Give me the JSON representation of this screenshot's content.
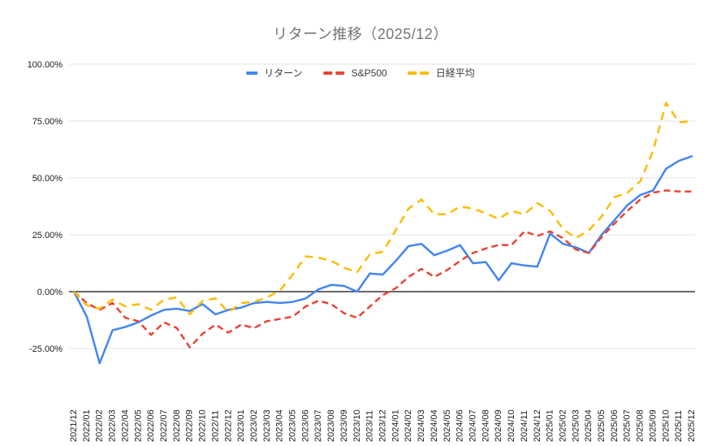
{
  "chart_data": {
    "type": "line",
    "title": "リターン推移（2025/12）",
    "xlabel": "",
    "ylabel": "",
    "grid": true,
    "legend_position": "top-center",
    "y_axis": {
      "tick_labels": [
        "100.00%",
        "75.00%",
        "50.00%",
        "25.00%",
        "0.00%",
        "-25.00%"
      ],
      "tick_values": [
        100,
        75,
        50,
        25,
        0,
        -25
      ],
      "unit": "%"
    },
    "categories": [
      "2021/12",
      "2022/01",
      "2022/02",
      "2022/03",
      "2022/04",
      "2022/05",
      "2022/06",
      "2022/07",
      "2022/08",
      "2022/09",
      "2022/10",
      "2022/11",
      "2022/12",
      "2023/01",
      "2023/02",
      "2023/03",
      "2023/04",
      "2023/05",
      "2023/06",
      "2023/07",
      "2023/08",
      "2023/09",
      "2023/10",
      "2023/11",
      "2023/12",
      "2024/01",
      "2024/02",
      "2024/03",
      "2024/04",
      "2024/05",
      "2024/06",
      "2024/07",
      "2024/08",
      "2024/09",
      "2024/10",
      "2024/11",
      "2024/12",
      "2025/01",
      "2025/02",
      "2025/03",
      "2025/04",
      "2025/05",
      "2025/06",
      "2025/07",
      "2025/08",
      "2025/09",
      "2025/10",
      "2025/11",
      "2025/12"
    ],
    "series": [
      {
        "name": "リターン",
        "color": "#4285f4",
        "style": "solid",
        "values": [
          0,
          -11,
          -31.5,
          -17,
          -15.5,
          -13.5,
          -10.5,
          -8,
          -7.5,
          -8.5,
          -5.5,
          -10,
          -8,
          -7,
          -5,
          -4.5,
          -5,
          -4.5,
          -3,
          1,
          3,
          2.5,
          0,
          8,
          7.5,
          13.5,
          20,
          21,
          16,
          18,
          20.5,
          12.5,
          13,
          5,
          12.5,
          11.5,
          11,
          25.5,
          21,
          19.5,
          17,
          25,
          31.5,
          38,
          42.5,
          44.5,
          54,
          57.5,
          59.5
        ]
      },
      {
        "name": "S&P500",
        "color": "#ea4335",
        "style": "dashed",
        "values": [
          0,
          -5,
          -8,
          -5,
          -11.5,
          -13,
          -19,
          -13.5,
          -16,
          -24.5,
          -18.5,
          -14.5,
          -18,
          -14.5,
          -16,
          -13,
          -12,
          -11,
          -6.5,
          -4,
          -5.5,
          -9.5,
          -11.5,
          -6.5,
          -1.5,
          1.5,
          6.5,
          10,
          6.5,
          9.5,
          13.5,
          17,
          19,
          20.5,
          20.5,
          26.5,
          24.5,
          26.5,
          23.5,
          18.5,
          17,
          24,
          30,
          35.5,
          40.5,
          43.5,
          44.5,
          44,
          44
        ]
      },
      {
        "name": "日経平均",
        "color": "#fbbc04",
        "style": "dashed",
        "values": [
          0,
          -6,
          -7.5,
          -3.5,
          -6.5,
          -5.5,
          -8,
          -3.5,
          -2.5,
          -10,
          -4,
          -3,
          -9,
          -5,
          -4.5,
          -2.5,
          0.5,
          7.5,
          15.5,
          15,
          13.5,
          10.5,
          8.5,
          16.5,
          17.5,
          27,
          36.5,
          40.5,
          34,
          34,
          37.5,
          36.5,
          34.5,
          32,
          35.5,
          34,
          39,
          35.5,
          27.5,
          23.5,
          27,
          33,
          41.5,
          43.5,
          48.5,
          62,
          83,
          74.5,
          75
        ]
      }
    ]
  }
}
